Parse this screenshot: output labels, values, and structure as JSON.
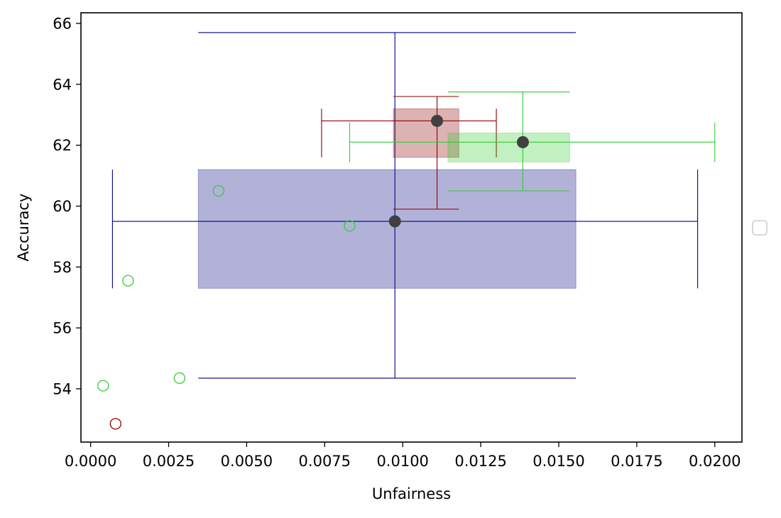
{
  "chart_data": {
    "type": "scatter",
    "title": "",
    "xlabel": "Unfairness",
    "ylabel": "Accuracy",
    "xlim": [
      -0.00031,
      0.02087
    ],
    "ylim": [
      52.25,
      66.35
    ],
    "x_ticks": [
      {
        "value": 0.0,
        "label": "0.0000"
      },
      {
        "value": 0.0025,
        "label": "0.0025"
      },
      {
        "value": 0.005,
        "label": "0.0050"
      },
      {
        "value": 0.0075,
        "label": "0.0075"
      },
      {
        "value": 0.01,
        "label": "0.0100"
      },
      {
        "value": 0.0125,
        "label": "0.0125"
      },
      {
        "value": 0.015,
        "label": "0.0150"
      },
      {
        "value": 0.0175,
        "label": "0.0175"
      },
      {
        "value": 0.02,
        "label": "0.0200"
      }
    ],
    "y_ticks": [
      {
        "value": 54,
        "label": "54"
      },
      {
        "value": 56,
        "label": "56"
      },
      {
        "value": 58,
        "label": "58"
      },
      {
        "value": 60,
        "label": "60"
      },
      {
        "value": 62,
        "label": "62"
      },
      {
        "value": 64,
        "label": "64"
      },
      {
        "value": 66,
        "label": "66"
      }
    ],
    "grid": false,
    "legend": "center-right, empty",
    "series": [
      {
        "color": "#00008b",
        "box": {
          "x": [
            0.00345,
            0.01555
          ],
          "y": [
            57.3,
            61.2
          ],
          "fill": "#000080"
        },
        "mean": {
          "x": 0.00975,
          "y": 59.5
        },
        "xerr": {
          "lo": 0.0007,
          "hi": 0.01945,
          "y": 59.5,
          "cap": [
            57.3,
            61.2
          ]
        },
        "yerr": {
          "lo": 54.35,
          "hi": 65.7,
          "x": 0.00975,
          "cap": [
            0.00345,
            0.01555
          ]
        },
        "points": []
      },
      {
        "color": "#8b0000",
        "box": {
          "x": [
            0.0097,
            0.0118
          ],
          "y": [
            61.6,
            63.2
          ],
          "fill": "#8b0000"
        },
        "mean": {
          "x": 0.0111,
          "y": 62.8
        },
        "xerr": {
          "lo": 0.0074,
          "hi": 0.013,
          "y": 62.8,
          "cap": [
            61.6,
            63.2
          ]
        },
        "yerr": {
          "lo": 59.9,
          "hi": 63.6,
          "x": 0.0111,
          "cap": [
            0.0097,
            0.0118
          ]
        },
        "points": [
          {
            "x": 0.0008,
            "y": 52.85
          }
        ]
      },
      {
        "color": "#32cd32",
        "box": {
          "x": [
            0.01145,
            0.01535
          ],
          "y": [
            61.45,
            62.4
          ],
          "fill": "#32cd32"
        },
        "mean": {
          "x": 0.01385,
          "y": 62.1
        },
        "xerr": {
          "lo": 0.0083,
          "hi": 0.02,
          "y": 62.1,
          "cap": [
            61.45,
            62.75
          ]
        },
        "yerr": {
          "lo": 60.5,
          "hi": 63.75,
          "x": 0.01385,
          "cap": [
            0.01145,
            0.01535
          ]
        },
        "points": [
          {
            "x": 0.0004,
            "y": 54.1
          },
          {
            "x": 0.0012,
            "y": 57.55
          },
          {
            "x": 0.00285,
            "y": 54.35
          },
          {
            "x": 0.0041,
            "y": 60.5
          },
          {
            "x": 0.0083,
            "y": 59.35
          }
        ]
      }
    ],
    "mean_marker_color": "#404040"
  }
}
